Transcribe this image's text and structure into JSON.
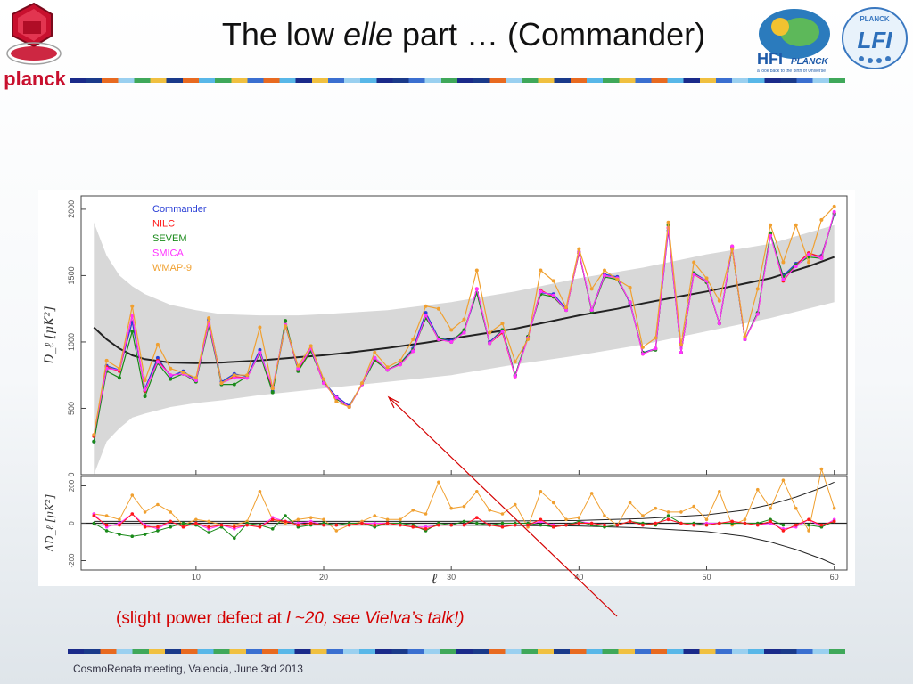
{
  "slide": {
    "title_part1": "The low ",
    "title_em": "elle",
    "title_part2": " part … (Commander)",
    "caption_part1": "(slight power defect at ",
    "caption_em": "l  ~20, see Vielva’s talk!)",
    "footer": "CosmoRenata meeting, Valencia, June 3rd 2013",
    "logo_planck": "planck",
    "logo_hfi": "HFI",
    "logo_hfi_sub": "PLANCK",
    "logo_hfi_tag": "a look back to the birth of Universe",
    "logo_lfi": "LFI",
    "logo_lfi_sub": "PLANCK"
  },
  "colors": {
    "caption_red": "#d40000",
    "planck_red": "#c8102e",
    "commander": "#2a3fd6",
    "nilc": "#ff1a1a",
    "sevem": "#1a8a1a",
    "smica": "#ff33ff",
    "wmap9": "#f0a030",
    "model": "#222222",
    "cosmic_variance": "#d8d8d8"
  },
  "chart_data": [
    {
      "type": "line",
      "panel": "top",
      "ylabel": "D_ℓ [μK²]",
      "xlim": [
        1,
        61
      ],
      "ylim": [
        0,
        2100
      ],
      "yticks": [
        "0",
        "500",
        "1000",
        "1500",
        "2000"
      ],
      "legend_placement": "top-left",
      "legend": [
        "Commander",
        "NILC",
        "SEVEM",
        "SMICA",
        "WMAP-9"
      ],
      "x": [
        2,
        3,
        4,
        5,
        6,
        7,
        8,
        9,
        10,
        11,
        12,
        13,
        14,
        15,
        16,
        17,
        18,
        19,
        20,
        21,
        22,
        23,
        24,
        25,
        26,
        27,
        28,
        29,
        30,
        31,
        32,
        33,
        34,
        35,
        36,
        37,
        38,
        39,
        40,
        41,
        42,
        43,
        44,
        45,
        46,
        47,
        48,
        49,
        50,
        51,
        52,
        53,
        54,
        55,
        56,
        57,
        58,
        59,
        60
      ],
      "series": [
        {
          "name": "Commander",
          "color_key": "commander",
          "values": [
            250,
            820,
            790,
            1150,
            650,
            880,
            740,
            780,
            710,
            1170,
            700,
            760,
            740,
            940,
            630,
            1120,
            800,
            940,
            700,
            590,
            520,
            680,
            880,
            790,
            840,
            950,
            1220,
            1030,
            1010,
            1080,
            1370,
            1000,
            1090,
            750,
            1040,
            1370,
            1360,
            1250,
            1670,
            1240,
            1510,
            1490,
            1290,
            920,
            950,
            1840,
            920,
            1520,
            1460,
            1140,
            1710,
            1020,
            1220,
            1800,
            1500,
            1590,
            1650,
            1650,
            1960
          ]
        },
        {
          "name": "NILC",
          "color_key": "nilc",
          "values": [
            290,
            810,
            780,
            1200,
            630,
            860,
            750,
            760,
            710,
            1150,
            690,
            740,
            730,
            920,
            650,
            1130,
            790,
            940,
            690,
            580,
            510,
            680,
            870,
            790,
            830,
            930,
            1190,
            1020,
            1000,
            1070,
            1400,
            990,
            1070,
            740,
            1030,
            1390,
            1340,
            1240,
            1670,
            1240,
            1500,
            1480,
            1300,
            910,
            950,
            1860,
            920,
            1510,
            1450,
            1140,
            1720,
            1020,
            1210,
            1810,
            1460,
            1580,
            1670,
            1640,
            1970
          ]
        },
        {
          "name": "SEVEM",
          "color_key": "sevem",
          "values": [
            250,
            780,
            730,
            1080,
            590,
            840,
            720,
            760,
            700,
            1120,
            680,
            680,
            740,
            910,
            620,
            1160,
            780,
            930,
            700,
            570,
            510,
            680,
            860,
            790,
            840,
            940,
            1180,
            1030,
            1000,
            1090,
            1370,
            990,
            1090,
            750,
            1040,
            1360,
            1340,
            1240,
            1680,
            1230,
            1490,
            1470,
            1300,
            920,
            940,
            1880,
            920,
            1520,
            1450,
            1140,
            1710,
            1020,
            1220,
            1820,
            1490,
            1580,
            1640,
            1630,
            1970
          ]
        },
        {
          "name": "SMICA",
          "color_key": "smica",
          "values": [
            300,
            800,
            790,
            1200,
            640,
            850,
            750,
            760,
            710,
            1140,
            690,
            730,
            730,
            920,
            660,
            1130,
            800,
            950,
            690,
            580,
            510,
            680,
            880,
            790,
            830,
            930,
            1200,
            1020,
            1000,
            1070,
            1400,
            990,
            1080,
            740,
            1030,
            1380,
            1350,
            1240,
            1680,
            1240,
            1500,
            1480,
            1300,
            910,
            950,
            1860,
            920,
            1510,
            1460,
            1140,
            1720,
            1020,
            1210,
            1800,
            1470,
            1570,
            1660,
            1630,
            1980
          ]
        },
        {
          "name": "WMAP-9",
          "color_key": "wmap9",
          "values": [
            300,
            860,
            800,
            1270,
            710,
            980,
            800,
            770,
            730,
            1180,
            690,
            750,
            750,
            1110,
            650,
            1120,
            820,
            970,
            720,
            550,
            510,
            690,
            920,
            810,
            860,
            1020,
            1270,
            1250,
            1090,
            1170,
            1540,
            1070,
            1140,
            850,
            1020,
            1540,
            1460,
            1260,
            1700,
            1400,
            1540,
            1470,
            1410,
            960,
            1030,
            1900,
            980,
            1600,
            1480,
            1310,
            1700,
            1040,
            1400,
            1880,
            1600,
            1880,
            1600,
            1920,
            2020
          ]
        }
      ],
      "model_curve": {
        "name": "best-fit model",
        "x": [
          2,
          3,
          4,
          5,
          6,
          8,
          10,
          12,
          15,
          18,
          20,
          22,
          25,
          28,
          30,
          33,
          35,
          38,
          40,
          43,
          45,
          48,
          50,
          53,
          55,
          58,
          60
        ],
        "values": [
          1110,
          1020,
          950,
          900,
          870,
          845,
          840,
          845,
          860,
          885,
          900,
          920,
          955,
          995,
          1025,
          1070,
          1100,
          1160,
          1200,
          1250,
          1290,
          1345,
          1380,
          1440,
          1480,
          1570,
          1640
        ]
      },
      "band": {
        "name": "cosmic variance",
        "color_key": "cosmic_variance",
        "x": [
          2,
          3,
          4,
          5,
          6,
          8,
          10,
          12,
          15,
          18,
          20,
          25,
          30,
          35,
          40,
          45,
          50,
          55,
          60
        ],
        "upper": [
          1900,
          1650,
          1500,
          1420,
          1360,
          1280,
          1240,
          1210,
          1200,
          1200,
          1210,
          1240,
          1300,
          1380,
          1480,
          1560,
          1660,
          1740,
          1880
        ],
        "lower": [
          0,
          250,
          350,
          430,
          460,
          510,
          540,
          560,
          600,
          630,
          650,
          700,
          750,
          830,
          900,
          980,
          1080,
          1180,
          1300
        ]
      }
    },
    {
      "type": "line",
      "panel": "bottom",
      "ylabel": "ΔD_ℓ [μK²]",
      "xlabel": "ℓ",
      "xlim": [
        1,
        61
      ],
      "ylim": [
        -250,
        250
      ],
      "yticks": [
        "-200",
        "0",
        "200"
      ],
      "xticks": [
        "10",
        "20",
        "30",
        "40",
        "50",
        "60"
      ],
      "x": [
        2,
        3,
        4,
        5,
        6,
        7,
        8,
        9,
        10,
        11,
        12,
        13,
        14,
        15,
        16,
        17,
        18,
        19,
        20,
        21,
        22,
        23,
        24,
        25,
        26,
        27,
        28,
        29,
        30,
        31,
        32,
        33,
        34,
        35,
        36,
        37,
        38,
        39,
        40,
        41,
        42,
        43,
        44,
        45,
        46,
        47,
        48,
        49,
        50,
        51,
        52,
        53,
        54,
        55,
        56,
        57,
        58,
        59,
        60
      ],
      "series": [
        {
          "name": "NILC",
          "color_key": "nilc",
          "values": [
            40,
            -10,
            -10,
            50,
            -20,
            -20,
            10,
            -20,
            0,
            -20,
            -10,
            -20,
            -10,
            -20,
            20,
            10,
            -10,
            0,
            -10,
            -10,
            -10,
            0,
            -10,
            0,
            -10,
            -20,
            -30,
            -10,
            -10,
            -10,
            30,
            -10,
            -20,
            -10,
            -10,
            20,
            -20,
            -10,
            0,
            0,
            -10,
            -10,
            10,
            -10,
            0,
            20,
            0,
            -10,
            -10,
            0,
            10,
            0,
            -10,
            10,
            -40,
            -10,
            20,
            -10,
            10
          ]
        },
        {
          "name": "SEVEM",
          "color_key": "sevem",
          "values": [
            0,
            -40,
            -60,
            -70,
            -60,
            -40,
            -20,
            0,
            -10,
            -50,
            -20,
            -80,
            0,
            -10,
            -30,
            40,
            -20,
            -10,
            0,
            -10,
            0,
            0,
            -20,
            0,
            0,
            -10,
            -40,
            0,
            -10,
            10,
            0,
            -10,
            0,
            0,
            0,
            -10,
            -20,
            -10,
            10,
            -10,
            -20,
            -10,
            10,
            0,
            -10,
            40,
            0,
            0,
            -10,
            0,
            0,
            0,
            0,
            20,
            -10,
            -10,
            -10,
            -20,
            10
          ]
        },
        {
          "name": "SMICA",
          "color_key": "smica",
          "values": [
            50,
            -20,
            0,
            50,
            -10,
            -30,
            10,
            -20,
            0,
            -30,
            -10,
            -30,
            -10,
            -20,
            30,
            10,
            0,
            10,
            -10,
            -10,
            -10,
            0,
            0,
            0,
            -10,
            -20,
            -20,
            -10,
            -10,
            -10,
            30,
            -10,
            -10,
            -10,
            -10,
            10,
            -10,
            -10,
            10,
            0,
            -10,
            -10,
            10,
            -10,
            0,
            20,
            0,
            -10,
            0,
            0,
            10,
            0,
            -10,
            0,
            -30,
            -20,
            20,
            -20,
            20
          ]
        },
        {
          "name": "WMAP-9",
          "color_key": "wmap9",
          "values": [
            50,
            40,
            20,
            150,
            60,
            100,
            60,
            -10,
            20,
            10,
            -10,
            -10,
            10,
            170,
            20,
            0,
            20,
            30,
            20,
            -40,
            -10,
            10,
            40,
            20,
            20,
            70,
            50,
            220,
            80,
            90,
            170,
            70,
            50,
            100,
            -20,
            170,
            110,
            20,
            30,
            160,
            40,
            -10,
            110,
            40,
            80,
            60,
            60,
            90,
            20,
            170,
            -10,
            20,
            180,
            80,
            230,
            80,
            -40,
            290,
            80
          ]
        }
      ],
      "envelope": {
        "name": "cosmic variance envelope",
        "x": [
          2,
          10,
          20,
          30,
          40,
          45,
          50,
          53,
          55,
          57,
          59,
          60
        ],
        "upper": [
          10,
          10,
          10,
          10,
          15,
          25,
          45,
          70,
          100,
          140,
          190,
          220
        ],
        "lower": [
          -10,
          -10,
          -10,
          -10,
          -15,
          -25,
          -45,
          -70,
          -100,
          -140,
          -190,
          -220
        ]
      }
    }
  ]
}
